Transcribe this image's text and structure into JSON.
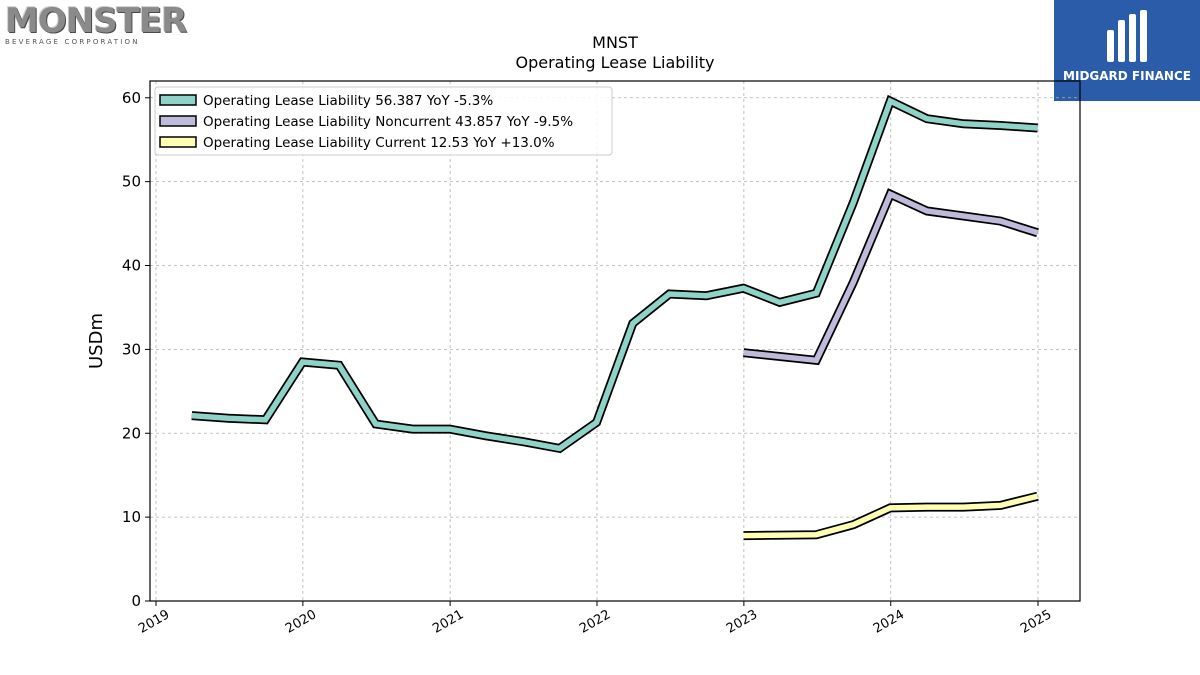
{
  "header": {
    "company_logo_text": "MONSTER",
    "company_logo_sub": "BEVERAGE CORPORATION",
    "publisher_name": "MIDGARD FINANCE"
  },
  "colors": {
    "series_total": "#8dd3c7",
    "series_noncurrent": "#bebada",
    "series_current": "#ffffb3",
    "outline": "#000000",
    "badge_bg": "#2a5caa"
  },
  "chart_data": {
    "type": "line",
    "title": "MNST",
    "subtitle": "Operating Lease Liability",
    "xlabel": "",
    "ylabel": "USDm",
    "ylim": [
      0,
      62
    ],
    "yticks": [
      0,
      10,
      20,
      30,
      40,
      50,
      60
    ],
    "xticks": [
      "2019",
      "2020",
      "2021",
      "2022",
      "2023",
      "2024",
      "2025"
    ],
    "grid": true,
    "legend_position": "top-left",
    "series": [
      {
        "name": "Operating Lease Liability",
        "legend": "Operating Lease Liability  56.387 YoY -5.3%",
        "color": "#8dd3c7",
        "points": [
          [
            "2019-03-31",
            22.1
          ],
          [
            "2019-06-30",
            21.8
          ],
          [
            "2019-09-30",
            21.6
          ],
          [
            "2019-12-31",
            28.5
          ],
          [
            "2020-03-31",
            28.1
          ],
          [
            "2020-06-30",
            21.1
          ],
          [
            "2020-09-30",
            20.5
          ],
          [
            "2020-12-31",
            20.5
          ],
          [
            "2021-03-31",
            19.7
          ],
          [
            "2021-06-30",
            19.0
          ],
          [
            "2021-09-30",
            18.2
          ],
          [
            "2021-12-31",
            21.3
          ],
          [
            "2022-03-31",
            33.1
          ],
          [
            "2022-06-30",
            36.6
          ],
          [
            "2022-09-30",
            36.4
          ],
          [
            "2022-12-31",
            37.3
          ],
          [
            "2023-03-31",
            35.6
          ],
          [
            "2023-06-30",
            36.7
          ],
          [
            "2023-09-30",
            47.5
          ],
          [
            "2023-12-31",
            59.6
          ],
          [
            "2024-03-31",
            57.5
          ],
          [
            "2024-06-30",
            56.9
          ],
          [
            "2024-09-30",
            56.7
          ],
          [
            "2024-12-31",
            56.4
          ]
        ]
      },
      {
        "name": "Operating Lease Liability Noncurrent",
        "legend": "Operating Lease Liability Noncurrent  43.857 YoY -9.5%",
        "color": "#bebada",
        "points": [
          [
            "2022-12-31",
            29.6
          ],
          [
            "2023-06-30",
            28.7
          ],
          [
            "2023-09-30",
            38.0
          ],
          [
            "2023-12-31",
            48.5
          ],
          [
            "2024-03-31",
            46.5
          ],
          [
            "2024-06-30",
            45.9
          ],
          [
            "2024-09-30",
            45.3
          ],
          [
            "2024-12-31",
            43.9
          ]
        ]
      },
      {
        "name": "Operating Lease Liability Current",
        "legend": "Operating Lease Liability Current  12.53 YoY +13.0%",
        "color": "#ffffb3",
        "points": [
          [
            "2022-12-31",
            7.8
          ],
          [
            "2023-06-30",
            7.9
          ],
          [
            "2023-09-30",
            9.1
          ],
          [
            "2023-12-31",
            11.1
          ],
          [
            "2024-03-31",
            11.2
          ],
          [
            "2024-06-30",
            11.2
          ],
          [
            "2024-09-30",
            11.4
          ],
          [
            "2024-12-31",
            12.5
          ]
        ]
      }
    ]
  }
}
